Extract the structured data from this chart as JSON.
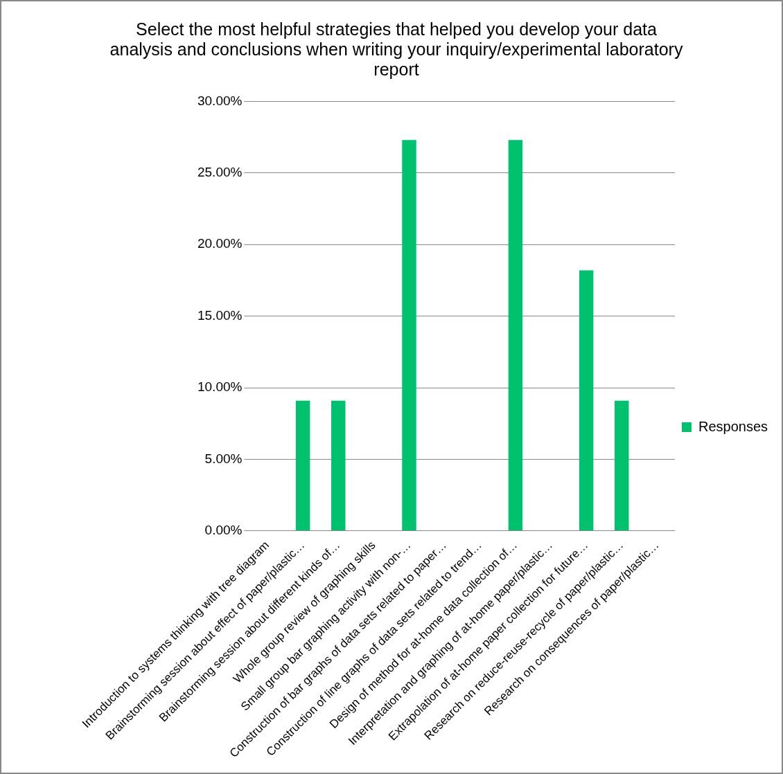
{
  "chart_data": {
    "type": "bar",
    "title": "Select the most helpful strategies that helped you develop your data analysis and conclusions when writing your inquiry/experimental laboratory report",
    "categories": [
      "Introduction to systems thinking with tree diagram",
      "Brainstorming session about effect of paper/plastic…",
      "Brainstorming session about different kinds of…",
      "Whole group review of graphing skills",
      "Small group bar graphing activity with non-…",
      "Construction of bar graphs of data sets related to paper…",
      "Construction of line graphs of data sets related to trend…",
      "Design of method for at-home data collection of…",
      "Interpretation and graphing of at-home paper/plastic…",
      "Extrapolation of at-home paper collection for future…",
      "Research on reduce-reuse-recycle of paper/plastic…",
      "Research on consequences of paper/plastic…"
    ],
    "series": [
      {
        "name": "Responses",
        "color": "#00c26e",
        "values": [
          0,
          9.1,
          9.1,
          0,
          27.3,
          0,
          0,
          27.3,
          0,
          18.2,
          9.1,
          0
        ]
      }
    ],
    "ylim": [
      0,
      30
    ],
    "yticks": [
      {
        "value": 0,
        "label": "0.00%"
      },
      {
        "value": 5,
        "label": "5.00%"
      },
      {
        "value": 10,
        "label": "10.00%"
      },
      {
        "value": 15,
        "label": "15.00%"
      },
      {
        "value": 20,
        "label": "20.00%"
      },
      {
        "value": 25,
        "label": "25.00%"
      },
      {
        "value": 30,
        "label": "30.00%"
      }
    ],
    "grid": "y",
    "legend": "right"
  }
}
